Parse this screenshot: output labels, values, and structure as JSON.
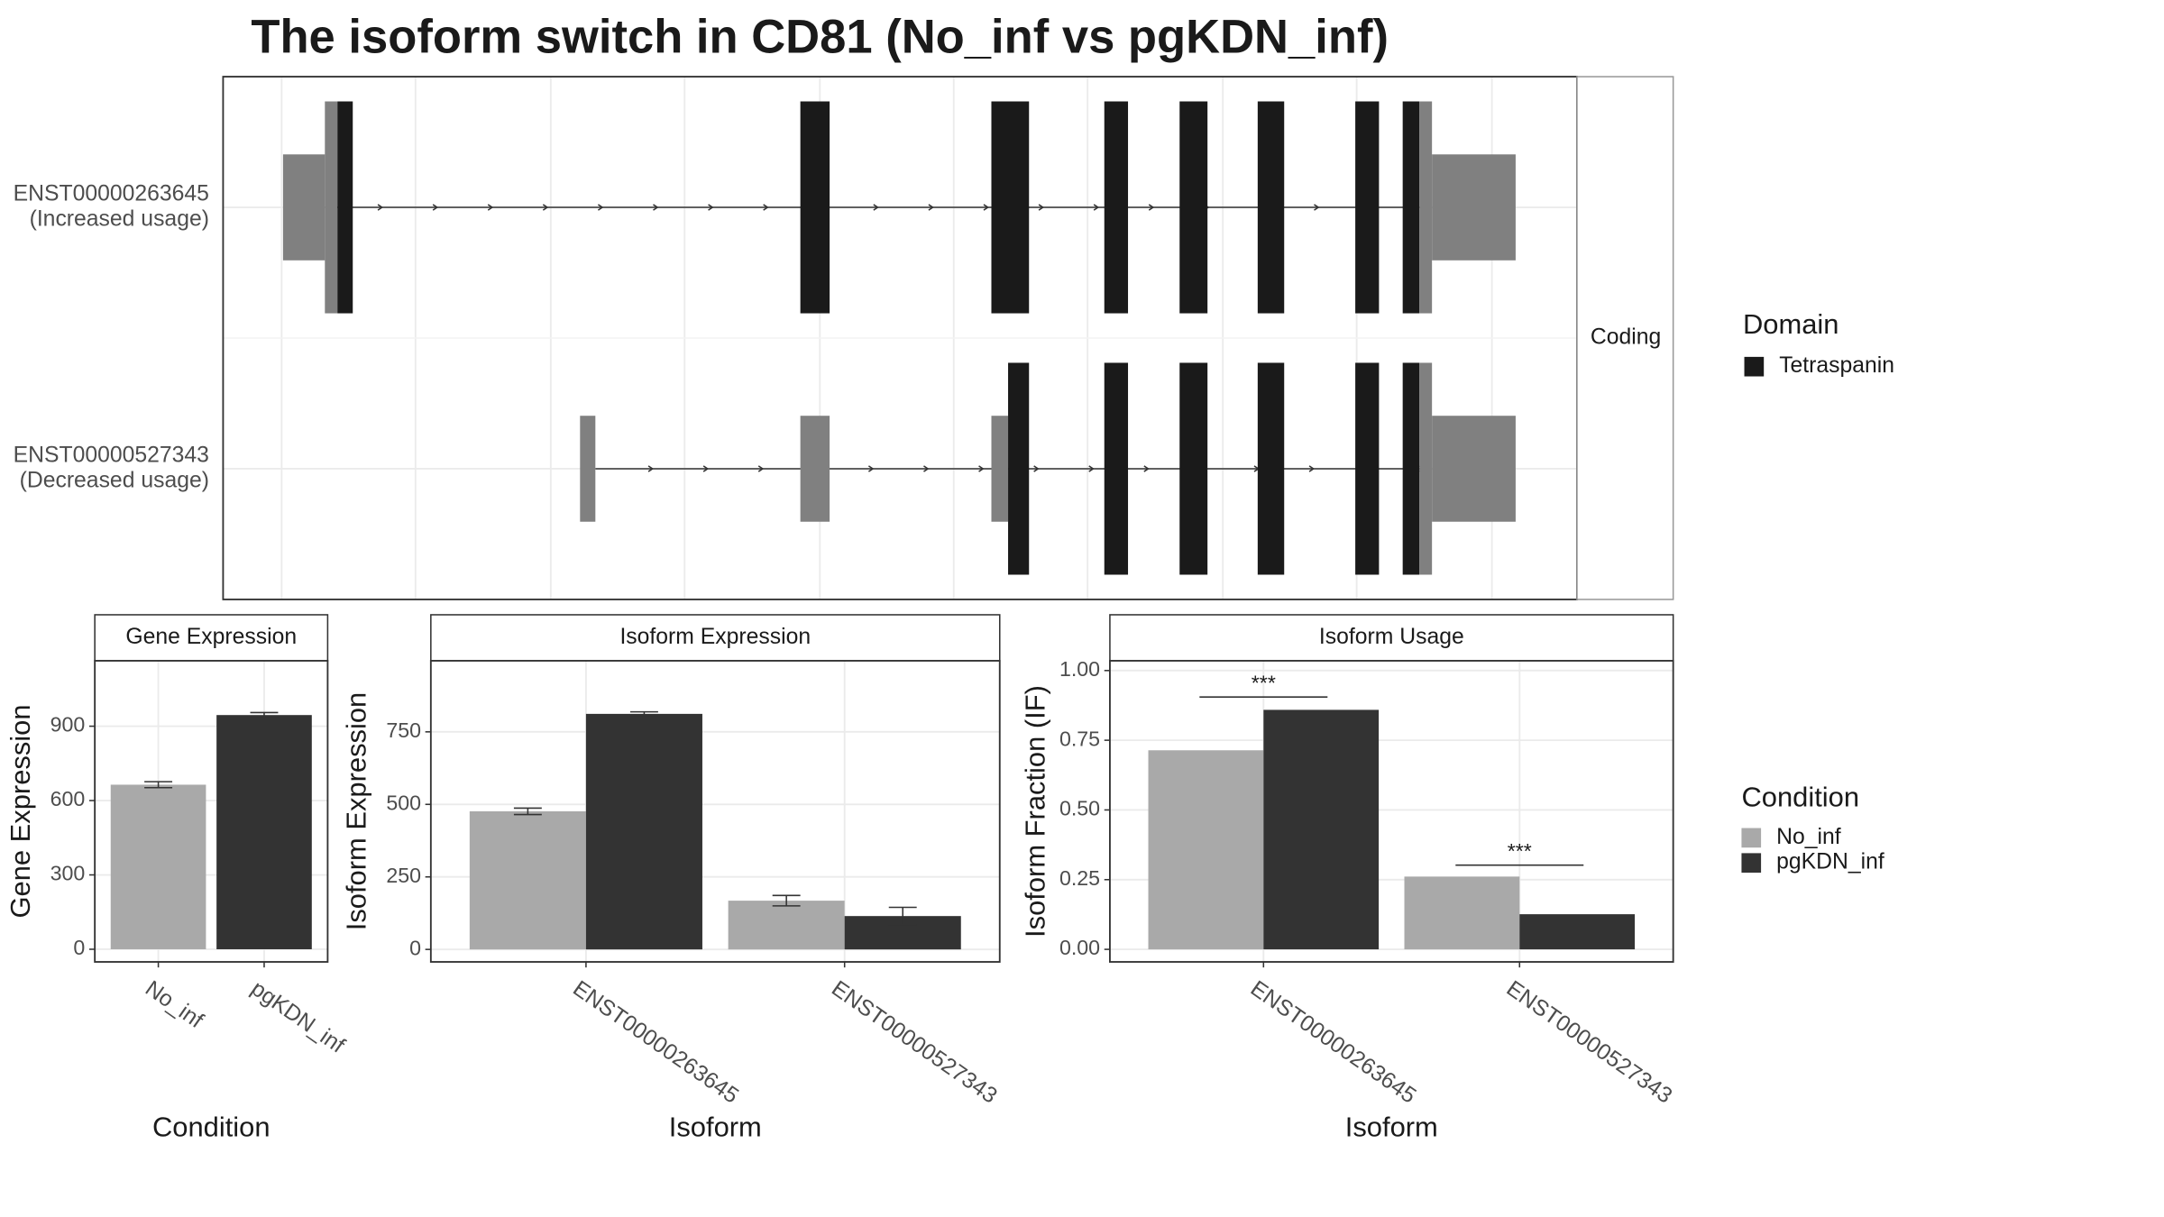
{
  "title": "The isoform switch in CD81 (No_inf vs pgKDN_inf)",
  "chart_data": [
    {
      "type": "transcripts",
      "facet": "Coding",
      "xlim": [
        0,
        971
      ],
      "xticks": [
        42,
        138,
        235,
        331,
        428,
        524,
        620,
        717,
        813,
        910
      ],
      "legend_title": "Domain",
      "legend": [
        {
          "name": "Tetraspanin",
          "color": "#1a1a1a"
        }
      ],
      "transcripts": [
        {
          "name": "ENST00000263645",
          "note": "(Increased usage)",
          "exons": [
            {
              "start": 43,
              "end": 73,
              "coding": false,
              "color": "#808080"
            },
            {
              "start": 73,
              "end": 82,
              "coding": true,
              "color": "#808080"
            },
            {
              "start": 82,
              "end": 93,
              "coding": true,
              "color": "#1a1a1a"
            },
            {
              "start": 414,
              "end": 435,
              "coding": true,
              "color": "#1a1a1a"
            },
            {
              "start": 551,
              "end": 578,
              "coding": true,
              "color": "#1a1a1a"
            },
            {
              "start": 632,
              "end": 649,
              "coding": true,
              "color": "#1a1a1a"
            },
            {
              "start": 686,
              "end": 706,
              "coding": true,
              "color": "#1a1a1a"
            },
            {
              "start": 742,
              "end": 761,
              "coding": true,
              "color": "#1a1a1a"
            },
            {
              "start": 812,
              "end": 829,
              "coding": true,
              "color": "#1a1a1a"
            },
            {
              "start": 846,
              "end": 858,
              "coding": true,
              "color": "#1a1a1a"
            },
            {
              "start": 858,
              "end": 867,
              "coding": true,
              "color": "#808080"
            },
            {
              "start": 867,
              "end": 927,
              "coding": false,
              "color": "#808080"
            }
          ]
        },
        {
          "name": "ENST00000527343",
          "note": "(Decreased usage)",
          "exons": [
            {
              "start": 256,
              "end": 267,
              "coding": false,
              "color": "#808080"
            },
            {
              "start": 414,
              "end": 435,
              "coding": false,
              "color": "#808080"
            },
            {
              "start": 551,
              "end": 563,
              "coding": false,
              "color": "#808080"
            },
            {
              "start": 563,
              "end": 578,
              "coding": true,
              "color": "#1a1a1a"
            },
            {
              "start": 632,
              "end": 649,
              "coding": true,
              "color": "#1a1a1a"
            },
            {
              "start": 686,
              "end": 706,
              "coding": true,
              "color": "#1a1a1a"
            },
            {
              "start": 742,
              "end": 761,
              "coding": true,
              "color": "#1a1a1a"
            },
            {
              "start": 812,
              "end": 829,
              "coding": true,
              "color": "#1a1a1a"
            },
            {
              "start": 846,
              "end": 858,
              "coding": true,
              "color": "#1a1a1a"
            },
            {
              "start": 858,
              "end": 867,
              "coding": true,
              "color": "#808080"
            },
            {
              "start": 867,
              "end": 927,
              "coding": false,
              "color": "#808080"
            }
          ]
        }
      ]
    },
    {
      "type": "bar",
      "strip": "Gene Expression",
      "xlabel": "Condition",
      "ylabel": "Gene Expression",
      "dodge": false,
      "categories": [
        "No_inf",
        "pgKDN_inf"
      ],
      "ylim": [
        -51,
        1164
      ],
      "yticks": [
        0,
        300,
        600,
        900
      ],
      "legend_title": "Condition",
      "series": [
        {
          "name": "No_inf",
          "color": "#a9a9a9",
          "values": [
            664,
            null
          ],
          "errors": [
            12,
            null
          ]
        },
        {
          "name": "pgKDN_inf",
          "color": "#333333",
          "values": [
            null,
            945
          ],
          "errors": [
            null,
            10
          ]
        }
      ]
    },
    {
      "type": "bar",
      "strip": "Isoform Expression",
      "xlabel": "Isoform",
      "ylabel": "Isoform Expression",
      "dodge": true,
      "categories": [
        "ENST00000263645",
        "ENST00000527343"
      ],
      "ylim": [
        -43,
        995
      ],
      "yticks": [
        0,
        250,
        500,
        750
      ],
      "series": [
        {
          "name": "No_inf",
          "color": "#a9a9a9",
          "values": [
            476,
            168
          ],
          "errors": [
            11,
            18
          ]
        },
        {
          "name": "pgKDN_inf",
          "color": "#333333",
          "values": [
            812,
            115
          ],
          "errors": [
            7,
            30
          ]
        }
      ]
    },
    {
      "type": "bar",
      "strip": "Isoform Usage",
      "xlabel": "Isoform",
      "ylabel": "Isoform Fraction (IF)",
      "dodge": true,
      "categories": [
        "ENST00000263645",
        "ENST00000527343"
      ],
      "ylim": [
        -0.045,
        1.035
      ],
      "yticks": [
        {
          "value": 0,
          "label": "0.00"
        },
        {
          "value": 0.25,
          "label": "0.25"
        },
        {
          "value": 0.5,
          "label": "0.50"
        },
        {
          "value": 0.75,
          "label": "0.75"
        },
        {
          "value": 1,
          "label": "1.00"
        }
      ],
      "series": [
        {
          "name": "No_inf",
          "color": "#a9a9a9",
          "values": [
            0.714,
            0.261
          ]
        },
        {
          "name": "pgKDN_inf",
          "color": "#333333",
          "values": [
            0.859,
            0.126
          ]
        }
      ],
      "annotations": [
        {
          "text": "***",
          "category": 0,
          "y": 0.905
        },
        {
          "text": "***",
          "category": 1,
          "y": 0.302
        }
      ]
    }
  ]
}
